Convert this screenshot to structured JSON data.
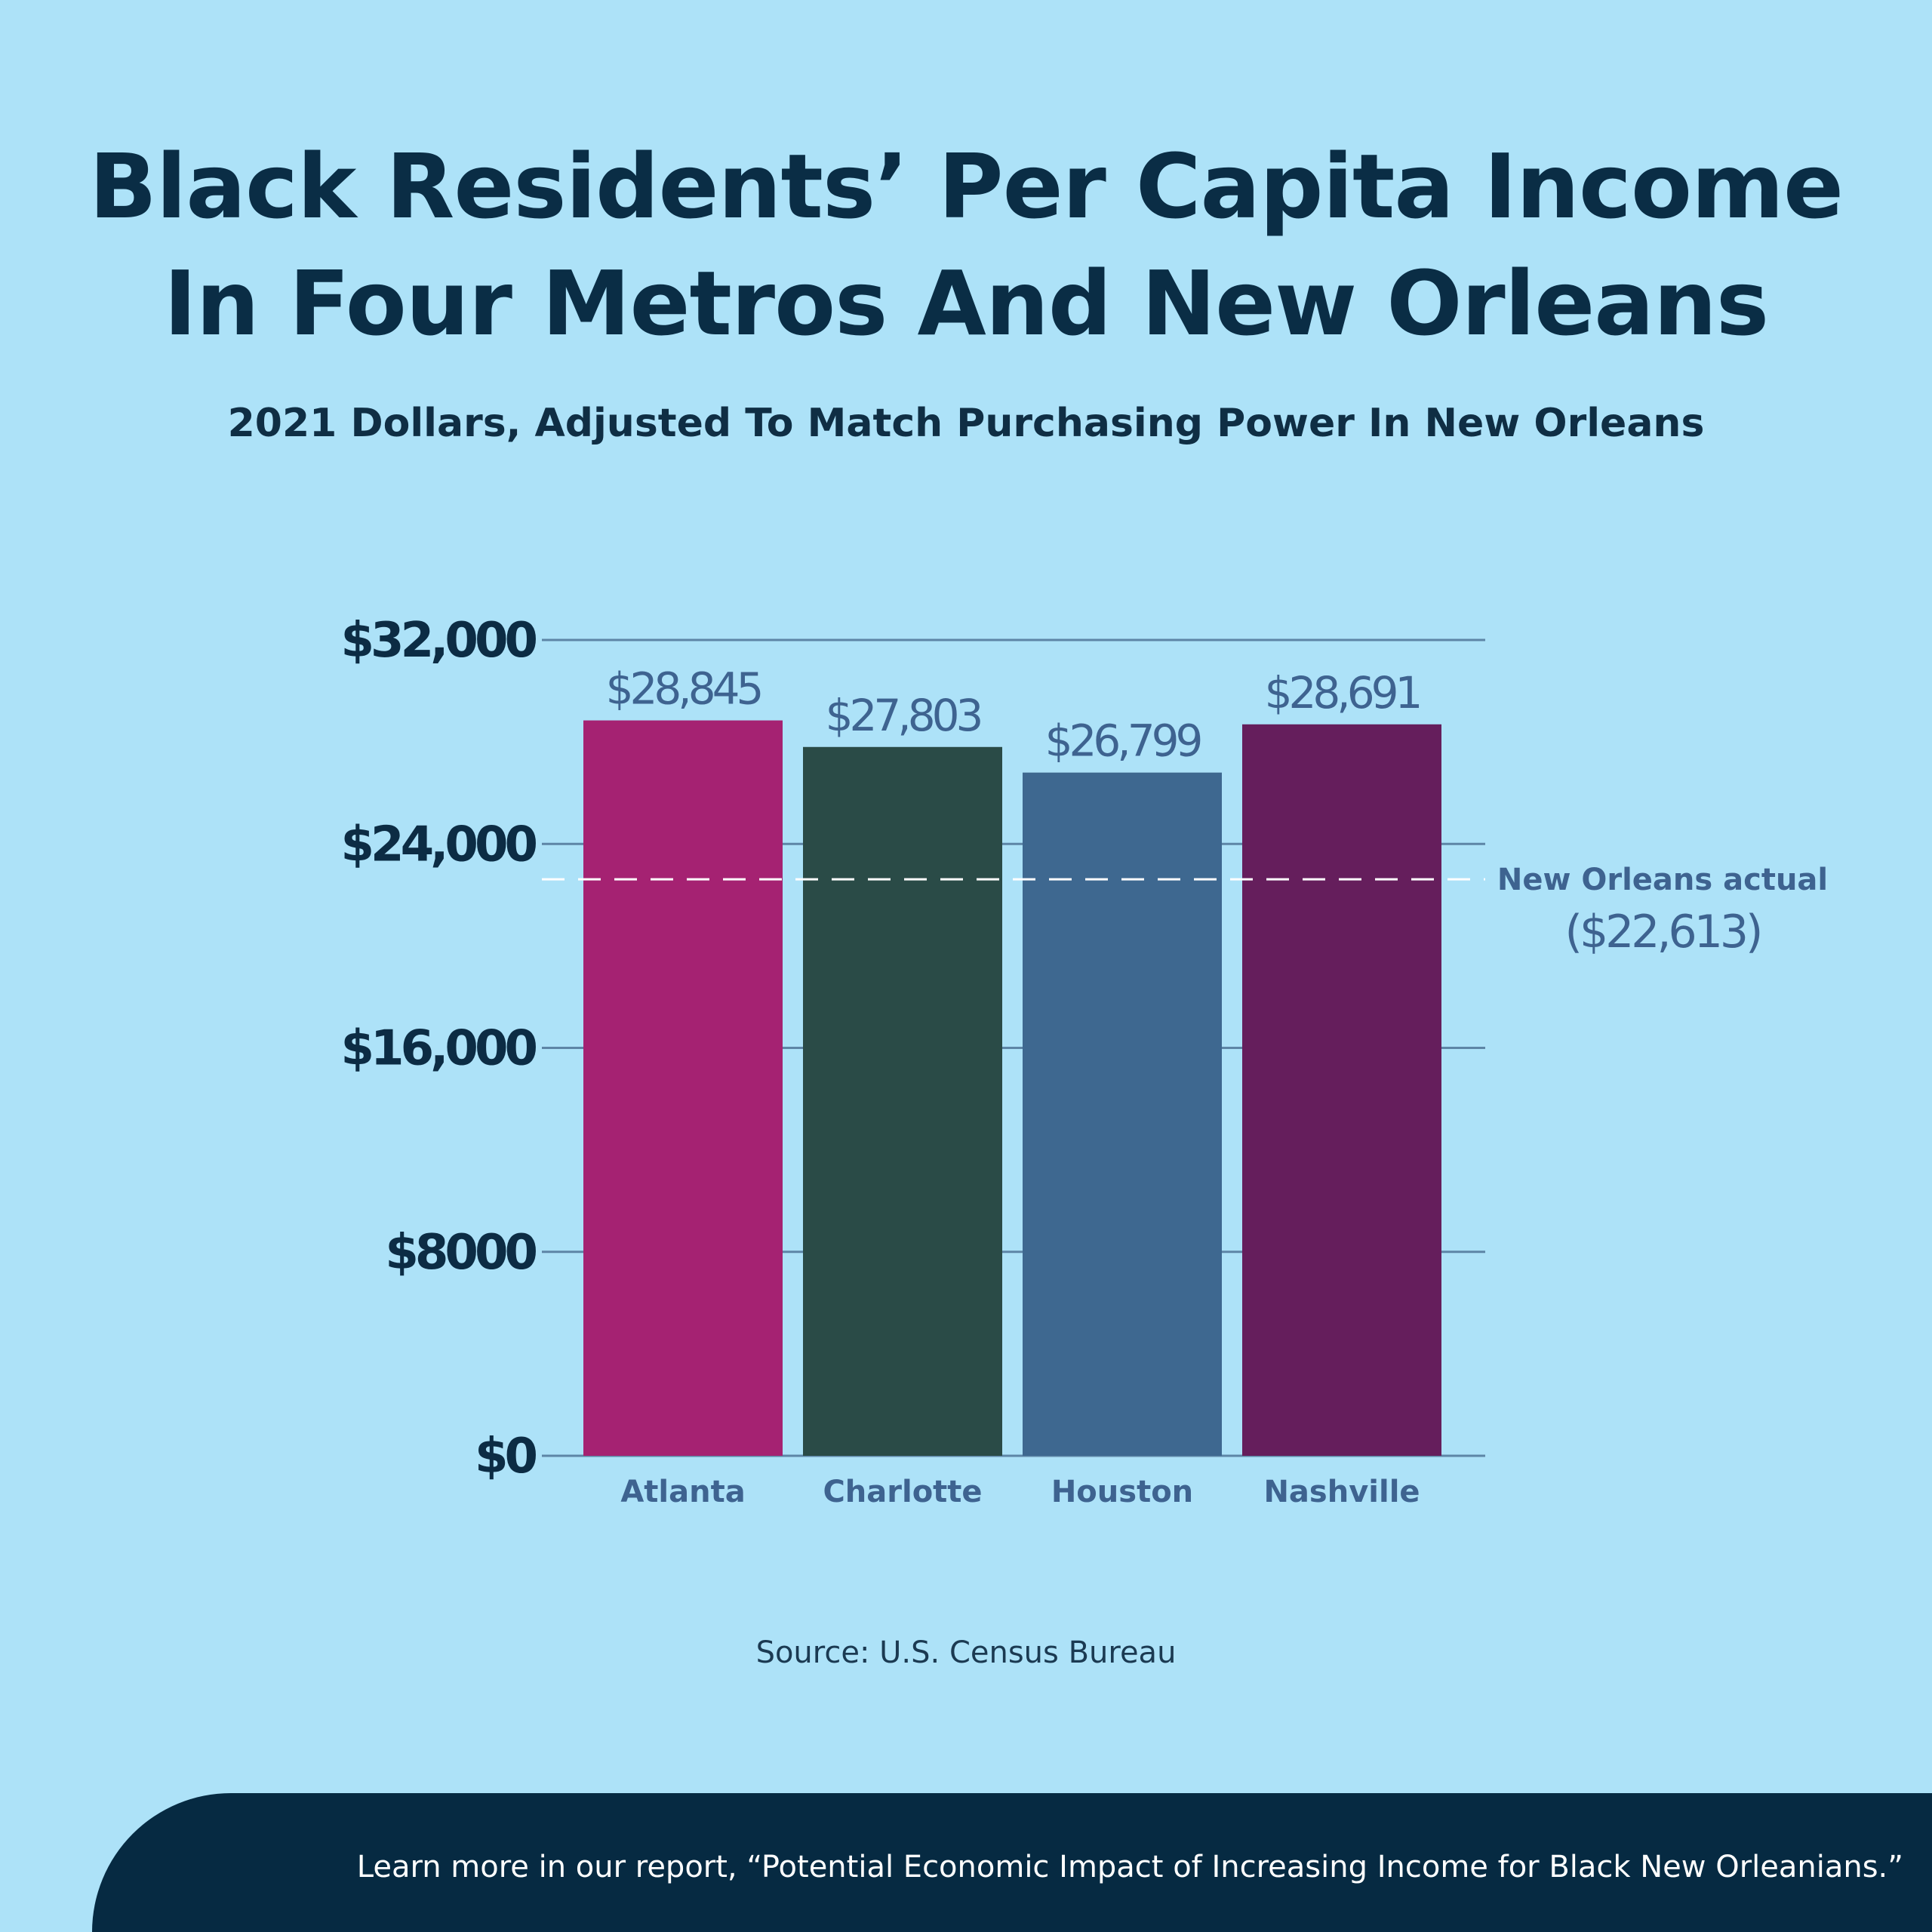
{
  "chart_data": {
    "type": "bar",
    "title": "Black Residents’ Per Capita Income In Four Metros And New Orleans",
    "title_lines": [
      "Black Residents’ Per Capita Income",
      "In Four Metros And New Orleans"
    ],
    "subtitle": "2021 Dollars, Adjusted To Match Purchasing Power In New Orleans",
    "categories": [
      "Atlanta",
      "Charlotte",
      "Houston",
      "Nashville"
    ],
    "values": [
      28845,
      27803,
      26799,
      28691
    ],
    "value_labels": [
      "$28,845",
      "$27,803",
      "$26,799",
      "$28,691"
    ],
    "bar_colors": [
      "#a52272",
      "#2a4b47",
      "#3e6890",
      "#651e5c"
    ],
    "ylim": [
      0,
      32000
    ],
    "yticks": [
      0,
      8000,
      16000,
      24000,
      32000
    ],
    "ytick_labels": [
      "$0",
      "$8000",
      "$16,000",
      "$24,000",
      "$32,000"
    ],
    "xlabel": "",
    "ylabel": "",
    "grid": true,
    "reference_line": {
      "value": 22613,
      "label": "New Orleans actual",
      "value_label": "($22,613)",
      "style": "dashed",
      "color": "#ffffff"
    }
  },
  "source": "Source: U.S. Census Bureau",
  "footer": {
    "text": "Learn more in our report, “Potential Economic Impact of Increasing Income for Black New Orleanians.”"
  },
  "colors": {
    "background": "#ade2f8",
    "title": "#0a2d45",
    "footer_bg": "#062a42",
    "label": "#3e6390",
    "gridline": "#5d85a6"
  }
}
